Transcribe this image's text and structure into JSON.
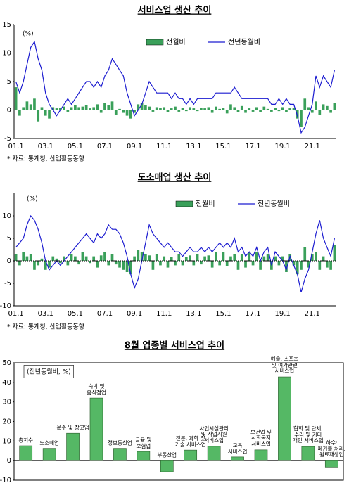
{
  "chart_data": [
    {
      "type": "combo",
      "title": "서비스업 생산 추이",
      "annotation": "(%)",
      "note": "* 자료: 통계청, 산업활동동향",
      "categories": [
        "01.1",
        null,
        null,
        null,
        null,
        null,
        null,
        null,
        "03.1",
        null,
        null,
        null,
        null,
        null,
        null,
        null,
        "05.1",
        null,
        null,
        null,
        null,
        null,
        null,
        null,
        "07.1",
        null,
        null,
        null,
        null,
        null,
        null,
        null,
        "09.1",
        null,
        null,
        null,
        null,
        null,
        null,
        null,
        "11.1",
        null,
        null,
        null,
        null,
        null,
        null,
        null,
        "13.1",
        null,
        null,
        null,
        null,
        null,
        null,
        null,
        "15.1",
        null,
        null,
        null,
        null,
        null,
        null,
        null,
        "17.1",
        null,
        null,
        null,
        null,
        null,
        null,
        null,
        "19.1",
        null,
        null,
        null,
        null,
        null,
        null,
        null,
        "21.1",
        null,
        null,
        null,
        null,
        null,
        null
      ],
      "series": [
        {
          "name": "전월비",
          "type": "bar",
          "color": "#3aa05a",
          "values": [
            4,
            -1,
            0.5,
            1.5,
            1,
            2,
            -2,
            0.5,
            -1,
            -1.5,
            0.5,
            0.3,
            0.4,
            0.6,
            -0.3,
            0.5,
            0.8,
            0.5,
            0.6,
            0.9,
            0.3,
            0.5,
            1,
            -0.5,
            1.2,
            0.8,
            1.5,
            -0.8,
            0.2,
            -0.5,
            -1,
            -1.5,
            -0.5,
            1,
            1.2,
            0.8,
            0.6,
            -0.3,
            0.5,
            0.4,
            0.5,
            -0.4,
            0.3,
            0.6,
            -0.3,
            0.4,
            -0.2,
            0.5,
            0.3,
            -0.2,
            0.4,
            0.3,
            0.5,
            -0.5,
            0.6,
            0.2,
            0.4,
            -0.6,
            1,
            0.5,
            -0.4,
            0.7,
            -0.5,
            0.3,
            -0.3,
            0.5,
            -0.4,
            0.6,
            0.2,
            -0.3,
            0.4,
            -0.2,
            0.5,
            -0.4,
            0.3,
            0.4,
            -1.5,
            -3,
            2,
            0.5,
            -0.5,
            1.5,
            -0.8,
            1,
            0.7,
            -0.5,
            1.2
          ]
        },
        {
          "name": "전년동월비",
          "type": "line",
          "color": "#1c1cd0",
          "values": [
            5,
            3,
            5,
            8,
            11,
            12,
            9,
            7,
            3,
            1,
            0,
            -1,
            0,
            1,
            2,
            1,
            2,
            3,
            4,
            5,
            5,
            4,
            5,
            4,
            6,
            7,
            9,
            8,
            7,
            6,
            3,
            1,
            -1,
            0,
            1,
            3,
            5,
            4,
            3,
            3,
            3,
            3,
            2,
            3,
            2,
            2,
            1,
            2,
            1,
            2,
            2,
            2,
            2,
            2,
            3,
            3,
            3,
            3,
            3,
            4,
            3,
            2,
            2,
            2,
            2,
            2,
            2,
            2,
            2,
            1,
            1,
            2,
            1,
            2,
            1,
            1,
            -1,
            -4,
            -3,
            -1,
            1,
            6,
            4,
            6,
            5,
            4,
            7
          ]
        }
      ],
      "ylim": [
        -5,
        15
      ],
      "yticks": [
        -5,
        0,
        5,
        10,
        15
      ]
    },
    {
      "type": "combo",
      "title": "도소매업 생산 추이",
      "annotation": "(%)",
      "note": "* 자료: 통계청, 산업활동동향",
      "categories": [
        "01.1",
        null,
        null,
        null,
        null,
        null,
        null,
        null,
        "03.1",
        null,
        null,
        null,
        null,
        null,
        null,
        null,
        "05.1",
        null,
        null,
        null,
        null,
        null,
        null,
        null,
        "07.1",
        null,
        null,
        null,
        null,
        null,
        null,
        null,
        "09.1",
        null,
        null,
        null,
        null,
        null,
        null,
        null,
        "11.1",
        null,
        null,
        null,
        null,
        null,
        null,
        null,
        "13.1",
        null,
        null,
        null,
        null,
        null,
        null,
        null,
        "15.1",
        null,
        null,
        null,
        null,
        null,
        null,
        null,
        "17.1",
        null,
        null,
        null,
        null,
        null,
        null,
        null,
        "19.1",
        null,
        null,
        null,
        null,
        null,
        null,
        null,
        "21.1",
        null,
        null,
        null,
        null,
        null,
        null
      ],
      "series": [
        {
          "name": "전월비",
          "type": "bar",
          "color": "#3aa05a",
          "values": [
            1.5,
            -1,
            2,
            1,
            1.5,
            -2,
            -1,
            0.5,
            -2,
            -1.5,
            1,
            0.5,
            -0.5,
            1,
            -1,
            1.5,
            1,
            -0.8,
            2,
            1,
            -0.5,
            1,
            -1.5,
            1.2,
            2,
            -1,
            1.5,
            -0.8,
            -1.5,
            -2,
            -2.5,
            -3,
            1,
            2.5,
            2,
            1.5,
            1.2,
            -2,
            1.5,
            -1,
            1,
            -1.5,
            0.8,
            -1,
            1.5,
            -1,
            0.8,
            1.2,
            -1,
            1.5,
            -0.8,
            1,
            1.2,
            -1.5,
            2,
            -1,
            2,
            -1.2,
            1,
            1.5,
            -2,
            1.5,
            -1.5,
            2,
            -1,
            2,
            -2,
            1,
            1.5,
            -2,
            1,
            -1,
            1,
            -2.5,
            1.5,
            -1,
            -3,
            -2,
            3,
            -1.5,
            1.5,
            2,
            -2,
            1,
            -1.5,
            -2,
            3.5
          ]
        },
        {
          "name": "전년동월비",
          "type": "line",
          "color": "#1c1cd0",
          "values": [
            3,
            4,
            5,
            8,
            10,
            9,
            7,
            4,
            0,
            -2,
            -1,
            0,
            -1,
            0,
            1,
            2,
            3,
            4,
            5,
            6,
            5,
            4,
            6,
            5,
            6,
            8,
            7,
            7,
            6,
            4,
            1,
            -3,
            -6,
            -4,
            0,
            4,
            8,
            6,
            5,
            4,
            3,
            4,
            3,
            2,
            2,
            1,
            2,
            3,
            2,
            2,
            3,
            2,
            3,
            2,
            3,
            4,
            3,
            4,
            3,
            5,
            2,
            3,
            1,
            2,
            1,
            3,
            0,
            2,
            3,
            -1,
            2,
            1,
            0,
            -2,
            1,
            -1,
            -3,
            -7,
            -4,
            -2,
            2,
            6,
            9,
            5,
            3,
            1,
            5
          ]
        }
      ],
      "ylim": [
        -10,
        15
      ],
      "yticks": [
        -10,
        -5,
        0,
        5,
        10
      ]
    },
    {
      "type": "bar",
      "title": "8월 업종별 서비스업 추이",
      "annotation": "(전년동월비, %)",
      "categories": [
        "총지수",
        "도소매업",
        "운수 및 창고업",
        "숙박 및\n음식점업",
        "정보통신업",
        "금융 및\n보험업",
        "부동산업",
        "전문, 과학 및\n기술 서비스업",
        "사업시설관리\n및 사업지원\n서비스업",
        "교육\n서비스업",
        "보건업 및\n사회복지\n서비스업",
        "예술, 스포츠\n및 여가관련\n서비스업",
        "협회 및 단체,\n수리 및 기타\n개인 서비스업",
        "하수·\n폐기물 처리,\n원료재생업"
      ],
      "values": [
        7.6,
        6.3,
        14,
        32,
        6.3,
        4.7,
        -5.7,
        5.4,
        7.3,
        1.9,
        5.5,
        42.8,
        7.2,
        -3.3
      ],
      "color": "#55b865",
      "ylim": [
        -10,
        50
      ],
      "yticks": [
        -10,
        0,
        10,
        20,
        30,
        40,
        50
      ]
    }
  ]
}
